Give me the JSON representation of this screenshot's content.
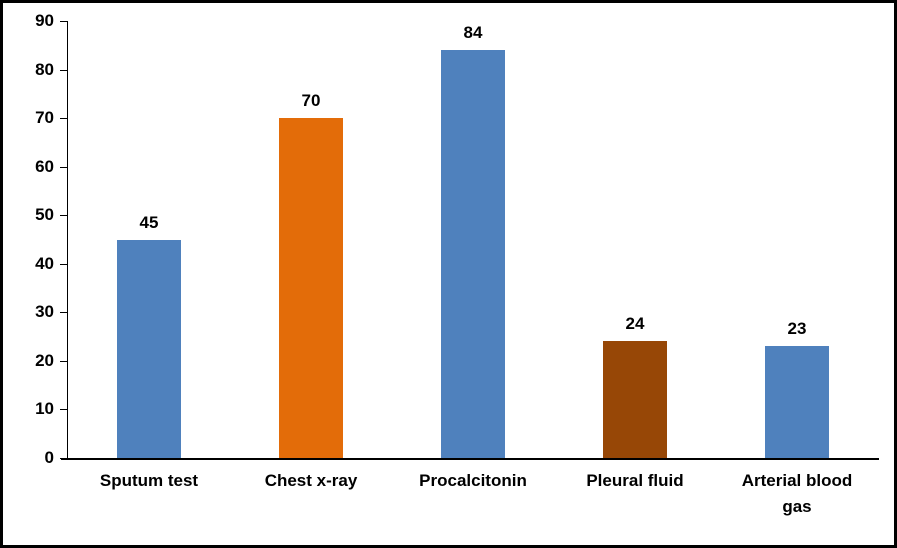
{
  "chart_data": {
    "type": "bar",
    "title": "",
    "xlabel": "",
    "ylabel": "",
    "categories": [
      "Sputum test",
      "Chest x-ray",
      "Procalcitonin",
      "Pleural fluid",
      "Arterial blood gas"
    ],
    "values": [
      45,
      70,
      84,
      24,
      23
    ],
    "data_labels": [
      "45",
      "70",
      "84",
      "24",
      "23"
    ],
    "bar_colors": [
      "#4F81BD",
      "#E36C09",
      "#4F81BD",
      "#974706",
      "#4F81BD"
    ],
    "ylim": [
      0,
      90
    ],
    "yticks": [
      0,
      10,
      20,
      30,
      40,
      50,
      60,
      70,
      80,
      90
    ],
    "grid": false,
    "legend": false
  },
  "colors": {
    "frame_border": "#000000",
    "axis": "#000000",
    "background": "#FFFFFF",
    "text": "#000000"
  }
}
